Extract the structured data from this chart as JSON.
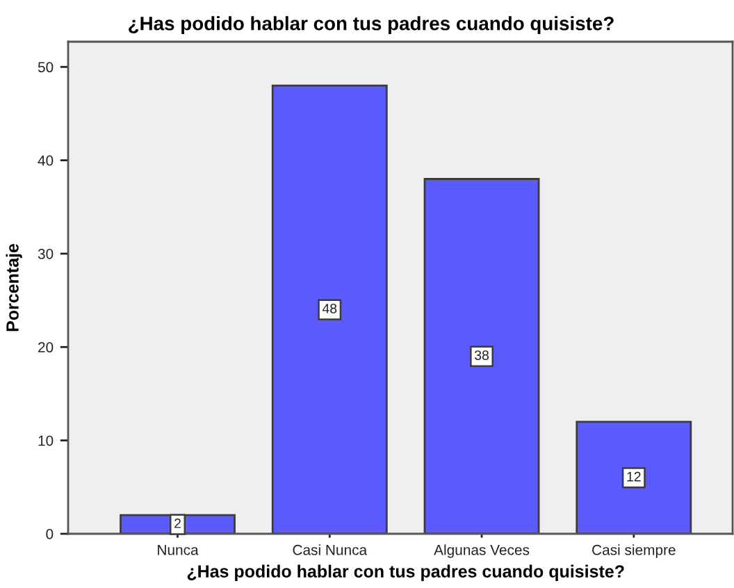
{
  "chart_data": {
    "type": "bar",
    "title": "¿Has podido hablar con tus padres cuando quisiste?",
    "xlabel": "¿Has podido hablar con tus padres cuando quisiste?",
    "ylabel": "Porcentaje",
    "categories": [
      "Nunca",
      "Casi Nunca",
      "Algunas Veces",
      "Casi siempre"
    ],
    "values": [
      2,
      48,
      38,
      12
    ],
    "color": "#5b5bff",
    "ylim": [
      0,
      52.7
    ],
    "yticks": [
      0,
      10,
      20,
      30,
      40,
      50
    ],
    "grid": false,
    "data_labels": true
  }
}
